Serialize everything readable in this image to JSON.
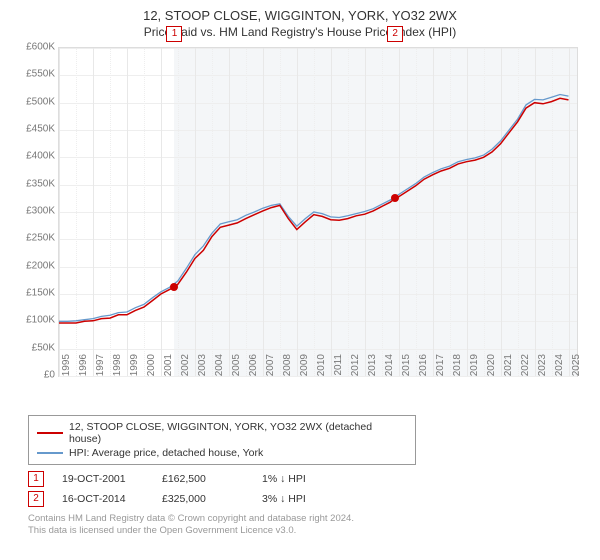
{
  "title_line1": "12, STOOP CLOSE, WIGGINTON, YORK, YO32 2WX",
  "title_line2": "Price paid vs. HM Land Registry's House Price Index (HPI)",
  "chart": {
    "type": "line",
    "background_color": "#ffffff",
    "plot_border_color": "#dddddd",
    "grid_color": "#eeeeee",
    "shade_color": "#f4f6f8",
    "x_years": [
      "1995",
      "1996",
      "1997",
      "1998",
      "1999",
      "2000",
      "2001",
      "2002",
      "2003",
      "2004",
      "2005",
      "2006",
      "2007",
      "2008",
      "2009",
      "2010",
      "2011",
      "2012",
      "2013",
      "2014",
      "2015",
      "2016",
      "2017",
      "2018",
      "2019",
      "2020",
      "2021",
      "2022",
      "2023",
      "2024",
      "2025"
    ],
    "x_range": [
      1995,
      2025.5
    ],
    "y_ticks": [
      "£0",
      "£50K",
      "£100K",
      "£150K",
      "£200K",
      "£250K",
      "£300K",
      "£350K",
      "£400K",
      "£450K",
      "£500K",
      "£550K",
      "£600K"
    ],
    "y_tick_values": [
      0,
      50000,
      100000,
      150000,
      200000,
      250000,
      300000,
      350000,
      400000,
      450000,
      500000,
      550000,
      600000
    ],
    "ylim": [
      0,
      600000
    ],
    "label_fontsize": 10,
    "label_color": "#777777",
    "series": [
      {
        "name": "subject",
        "color": "#cc0000",
        "line_width": 1.5,
        "data": [
          [
            1995.0,
            97000
          ],
          [
            1995.5,
            97000
          ],
          [
            1996.0,
            97000
          ],
          [
            1996.5,
            100000
          ],
          [
            1997.0,
            101000
          ],
          [
            1997.5,
            105000
          ],
          [
            1998.0,
            106000
          ],
          [
            1998.5,
            112000
          ],
          [
            1999.0,
            112000
          ],
          [
            1999.5,
            120000
          ],
          [
            2000.0,
            126000
          ],
          [
            2000.5,
            138000
          ],
          [
            2001.0,
            150000
          ],
          [
            2001.5,
            158000
          ],
          [
            2001.8,
            162500
          ],
          [
            2002.0,
            168000
          ],
          [
            2002.5,
            190000
          ],
          [
            2003.0,
            215000
          ],
          [
            2003.5,
            230000
          ],
          [
            2004.0,
            255000
          ],
          [
            2004.5,
            272000
          ],
          [
            2005.0,
            276000
          ],
          [
            2005.5,
            280000
          ],
          [
            2006.0,
            288000
          ],
          [
            2006.5,
            295000
          ],
          [
            2007.0,
            302000
          ],
          [
            2007.5,
            308000
          ],
          [
            2008.0,
            312000
          ],
          [
            2008.5,
            288000
          ],
          [
            2009.0,
            268000
          ],
          [
            2009.5,
            282000
          ],
          [
            2010.0,
            295000
          ],
          [
            2010.5,
            292000
          ],
          [
            2011.0,
            286000
          ],
          [
            2011.5,
            285000
          ],
          [
            2012.0,
            288000
          ],
          [
            2012.5,
            293000
          ],
          [
            2013.0,
            296000
          ],
          [
            2013.5,
            302000
          ],
          [
            2014.0,
            310000
          ],
          [
            2014.5,
            318000
          ],
          [
            2014.79,
            325000
          ],
          [
            2015.0,
            328000
          ],
          [
            2015.5,
            338000
          ],
          [
            2016.0,
            348000
          ],
          [
            2016.5,
            360000
          ],
          [
            2017.0,
            368000
          ],
          [
            2017.5,
            375000
          ],
          [
            2018.0,
            380000
          ],
          [
            2018.5,
            388000
          ],
          [
            2019.0,
            392000
          ],
          [
            2019.5,
            395000
          ],
          [
            2020.0,
            400000
          ],
          [
            2020.5,
            410000
          ],
          [
            2021.0,
            425000
          ],
          [
            2021.5,
            445000
          ],
          [
            2022.0,
            465000
          ],
          [
            2022.5,
            490000
          ],
          [
            2023.0,
            500000
          ],
          [
            2023.5,
            498000
          ],
          [
            2024.0,
            502000
          ],
          [
            2024.5,
            508000
          ],
          [
            2025.0,
            505000
          ]
        ]
      },
      {
        "name": "hpi",
        "color": "#6699cc",
        "line_width": 1.3,
        "data": [
          [
            1995.0,
            100000
          ],
          [
            1995.5,
            100000
          ],
          [
            1996.0,
            101000
          ],
          [
            1996.5,
            103000
          ],
          [
            1997.0,
            105000
          ],
          [
            1997.5,
            109000
          ],
          [
            1998.0,
            111000
          ],
          [
            1998.5,
            116000
          ],
          [
            1999.0,
            117000
          ],
          [
            1999.5,
            125000
          ],
          [
            2000.0,
            131000
          ],
          [
            2000.5,
            143000
          ],
          [
            2001.0,
            154000
          ],
          [
            2001.5,
            162000
          ],
          [
            2002.0,
            174000
          ],
          [
            2002.5,
            197000
          ],
          [
            2003.0,
            222000
          ],
          [
            2003.5,
            238000
          ],
          [
            2004.0,
            261000
          ],
          [
            2004.5,
            278000
          ],
          [
            2005.0,
            282000
          ],
          [
            2005.5,
            286000
          ],
          [
            2006.0,
            294000
          ],
          [
            2006.5,
            300000
          ],
          [
            2007.0,
            307000
          ],
          [
            2007.5,
            312000
          ],
          [
            2008.0,
            315000
          ],
          [
            2008.5,
            292000
          ],
          [
            2009.0,
            274000
          ],
          [
            2009.5,
            288000
          ],
          [
            2010.0,
            300000
          ],
          [
            2010.5,
            297000
          ],
          [
            2011.0,
            291000
          ],
          [
            2011.5,
            290000
          ],
          [
            2012.0,
            293000
          ],
          [
            2012.5,
            297000
          ],
          [
            2013.0,
            301000
          ],
          [
            2013.5,
            306000
          ],
          [
            2014.0,
            314000
          ],
          [
            2014.5,
            322000
          ],
          [
            2015.0,
            332000
          ],
          [
            2015.5,
            342000
          ],
          [
            2016.0,
            352000
          ],
          [
            2016.5,
            364000
          ],
          [
            2017.0,
            372000
          ],
          [
            2017.5,
            379000
          ],
          [
            2018.0,
            384000
          ],
          [
            2018.5,
            392000
          ],
          [
            2019.0,
            396000
          ],
          [
            2019.5,
            399000
          ],
          [
            2020.0,
            404000
          ],
          [
            2020.5,
            415000
          ],
          [
            2021.0,
            430000
          ],
          [
            2021.5,
            450000
          ],
          [
            2022.0,
            470000
          ],
          [
            2022.5,
            496000
          ],
          [
            2023.0,
            506000
          ],
          [
            2023.5,
            505000
          ],
          [
            2024.0,
            510000
          ],
          [
            2024.5,
            515000
          ],
          [
            2025.0,
            512000
          ]
        ]
      }
    ],
    "sale_markers": [
      {
        "num": "1",
        "year": 2001.8,
        "price": 162500
      },
      {
        "num": "2",
        "year": 2014.79,
        "price": 325000
      }
    ],
    "shade_ranges": [
      [
        2001.8,
        2014.79
      ],
      [
        2014.79,
        2025.5
      ]
    ]
  },
  "legend": {
    "items": [
      {
        "color": "#cc0000",
        "label": "12, STOOP CLOSE, WIGGINTON, YORK, YO32 2WX (detached house)"
      },
      {
        "color": "#6699cc",
        "label": "HPI: Average price, detached house, York"
      }
    ]
  },
  "sales": [
    {
      "num": "1",
      "date": "19-OCT-2001",
      "price": "£162,500",
      "diff": "1% ↓ HPI"
    },
    {
      "num": "2",
      "date": "16-OCT-2014",
      "price": "£325,000",
      "diff": "3% ↓ HPI"
    }
  ],
  "footer_line1": "Contains HM Land Registry data © Crown copyright and database right 2024.",
  "footer_line2": "This data is licensed under the Open Government Licence v3.0."
}
